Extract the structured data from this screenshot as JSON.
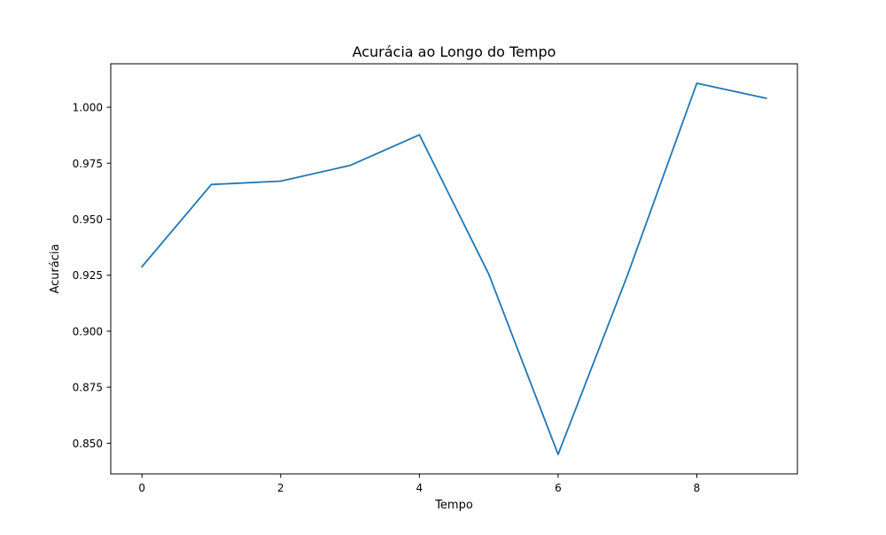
{
  "colors": {
    "line": "#1f77b4",
    "axes": "#000000",
    "background": "#ffffff"
  },
  "chart_data": {
    "type": "line",
    "title": "Acurácia ao Longo do Tempo",
    "xlabel": "Tempo",
    "ylabel": "Acurácia",
    "xlim": [
      -0.45,
      9.45
    ],
    "ylim": [
      0.8363,
      1.0194
    ],
    "x_ticks": [
      0,
      2,
      4,
      6,
      8
    ],
    "y_ticks": [
      0.85,
      0.875,
      0.9,
      0.925,
      0.95,
      0.975,
      1.0
    ],
    "x_tick_labels": [
      "0",
      "2",
      "4",
      "6",
      "8"
    ],
    "y_tick_labels": [
      "0.850",
      "0.875",
      "0.900",
      "0.925",
      "0.950",
      "0.975",
      "1.000"
    ],
    "grid": false,
    "legend": "none",
    "series": [
      {
        "x": [
          0,
          1,
          2,
          3,
          4,
          5,
          6,
          7,
          8,
          9
        ],
        "values": [
          0.9288,
          0.9655,
          0.967,
          0.974,
          0.9877,
          0.9255,
          0.845,
          0.925,
          1.0107,
          1.004
        ]
      }
    ]
  }
}
